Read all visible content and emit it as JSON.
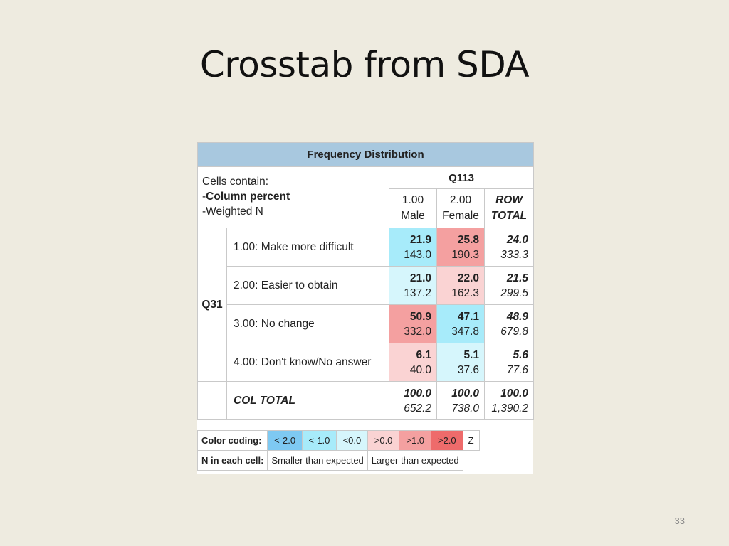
{
  "slide": {
    "title": "Crosstab from SDA",
    "page_number": "33"
  },
  "table": {
    "header": "Frequency Distribution",
    "cells_contain": {
      "line1": "Cells contain:",
      "line2": "Column percent",
      "line3": "Weighted N"
    },
    "column_variable": "Q113",
    "columns": [
      {
        "code": "1.00",
        "label": "Male"
      },
      {
        "code": "2.00",
        "label": "Female"
      },
      {
        "code": "ROW",
        "label": "TOTAL"
      }
    ],
    "row_variable": "Q31",
    "rows": [
      {
        "label": "1.00: Make more difficult",
        "cells": [
          {
            "pct": "21.9",
            "n": "143.0",
            "color": "#a7ebfa"
          },
          {
            "pct": "25.8",
            "n": "190.3",
            "color": "#f4a0a0"
          }
        ],
        "total": {
          "pct": "24.0",
          "n": "333.3"
        }
      },
      {
        "label": "2.00: Easier to obtain",
        "cells": [
          {
            "pct": "21.0",
            "n": "137.2",
            "color": "#d6f6fc"
          },
          {
            "pct": "22.0",
            "n": "162.3",
            "color": "#fad3d3"
          }
        ],
        "total": {
          "pct": "21.5",
          "n": "299.5"
        }
      },
      {
        "label": "3.00: No change",
        "cells": [
          {
            "pct": "50.9",
            "n": "332.0",
            "color": "#f4a0a0"
          },
          {
            "pct": "47.1",
            "n": "347.8",
            "color": "#a7ebfa"
          }
        ],
        "total": {
          "pct": "48.9",
          "n": "679.8"
        }
      },
      {
        "label": "4.00: Don't know/No answer",
        "cells": [
          {
            "pct": "6.1",
            "n": "40.0",
            "color": "#fad3d3"
          },
          {
            "pct": "5.1",
            "n": "37.6",
            "color": "#d6f6fc"
          }
        ],
        "total": {
          "pct": "5.6",
          "n": "77.6"
        }
      }
    ],
    "col_total": {
      "label": "COL TOTAL",
      "cells": [
        {
          "pct": "100.0",
          "n": "652.2"
        },
        {
          "pct": "100.0",
          "n": "738.0"
        }
      ],
      "total": {
        "pct": "100.0",
        "n": "1,390.2"
      }
    }
  },
  "legend": {
    "color_coding_label": "Color coding:",
    "swatches": [
      {
        "text": "<-2.0",
        "color": "#7ec9f2"
      },
      {
        "text": "<-1.0",
        "color": "#a7ebfa"
      },
      {
        "text": "<0.0",
        "color": "#d6f6fc"
      },
      {
        "text": ">0.0",
        "color": "#fad3d3"
      },
      {
        "text": ">1.0",
        "color": "#f4a0a0"
      },
      {
        "text": ">2.0",
        "color": "#ee6b6b"
      }
    ],
    "z_label": "Z",
    "n_label": "N in each cell:",
    "smaller": "Smaller than expected",
    "larger": "Larger than expected"
  }
}
